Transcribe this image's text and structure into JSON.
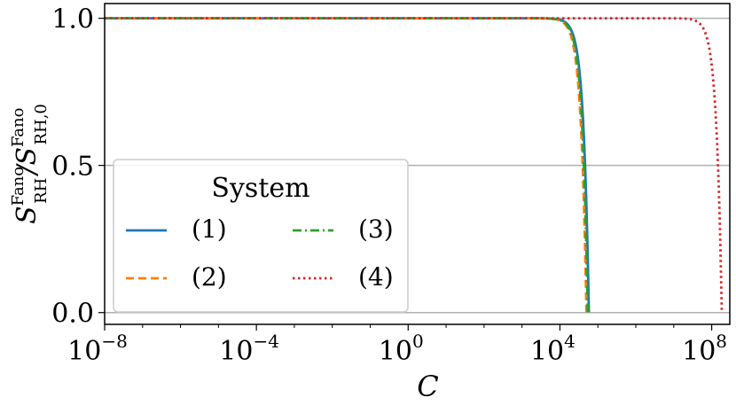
{
  "chart_data": {
    "type": "line",
    "xlabel": "C",
    "ylabel": {
      "main": "S",
      "sup1": "Fano",
      "sub1": "RH",
      "slash": "/",
      "main2": "S",
      "sup2": "Fano",
      "sub2": "RH,0"
    },
    "x_scale": "log",
    "xlim": [
      1e-08,
      300000000.0
    ],
    "ylim": [
      -0.04,
      1.05
    ],
    "x_ticks": [
      {
        "value": 1e-08,
        "base": "10",
        "exp": "−8"
      },
      {
        "value": 0.0001,
        "base": "10",
        "exp": "−4"
      },
      {
        "value": 1,
        "base": "10",
        "exp": "0"
      },
      {
        "value": 10000.0,
        "base": "10",
        "exp": "4"
      },
      {
        "value": 100000000.0,
        "base": "10",
        "exp": "8"
      }
    ],
    "y_ticks": [
      {
        "value": 0.0,
        "label": "0.0"
      },
      {
        "value": 0.5,
        "label": "0.5"
      },
      {
        "value": 1.0,
        "label": "1.0"
      }
    ],
    "grid": "horizontal",
    "legend": {
      "title": "System",
      "placement": "lower-left",
      "columns": 2
    },
    "series": [
      {
        "name": "(1)",
        "color": "#1f77b4",
        "dash": "solid",
        "cutoff": 58000.0
      },
      {
        "name": "(2)",
        "color": "#ff7f0e",
        "dash": "dashed",
        "cutoff": 50000.0
      },
      {
        "name": "(3)",
        "color": "#2ca02c",
        "dash": "dashdot",
        "cutoff": 54000.0
      },
      {
        "name": "(4)",
        "color": "#d62728",
        "dash": "dotted",
        "cutoff": 185000000.0
      }
    ]
  }
}
